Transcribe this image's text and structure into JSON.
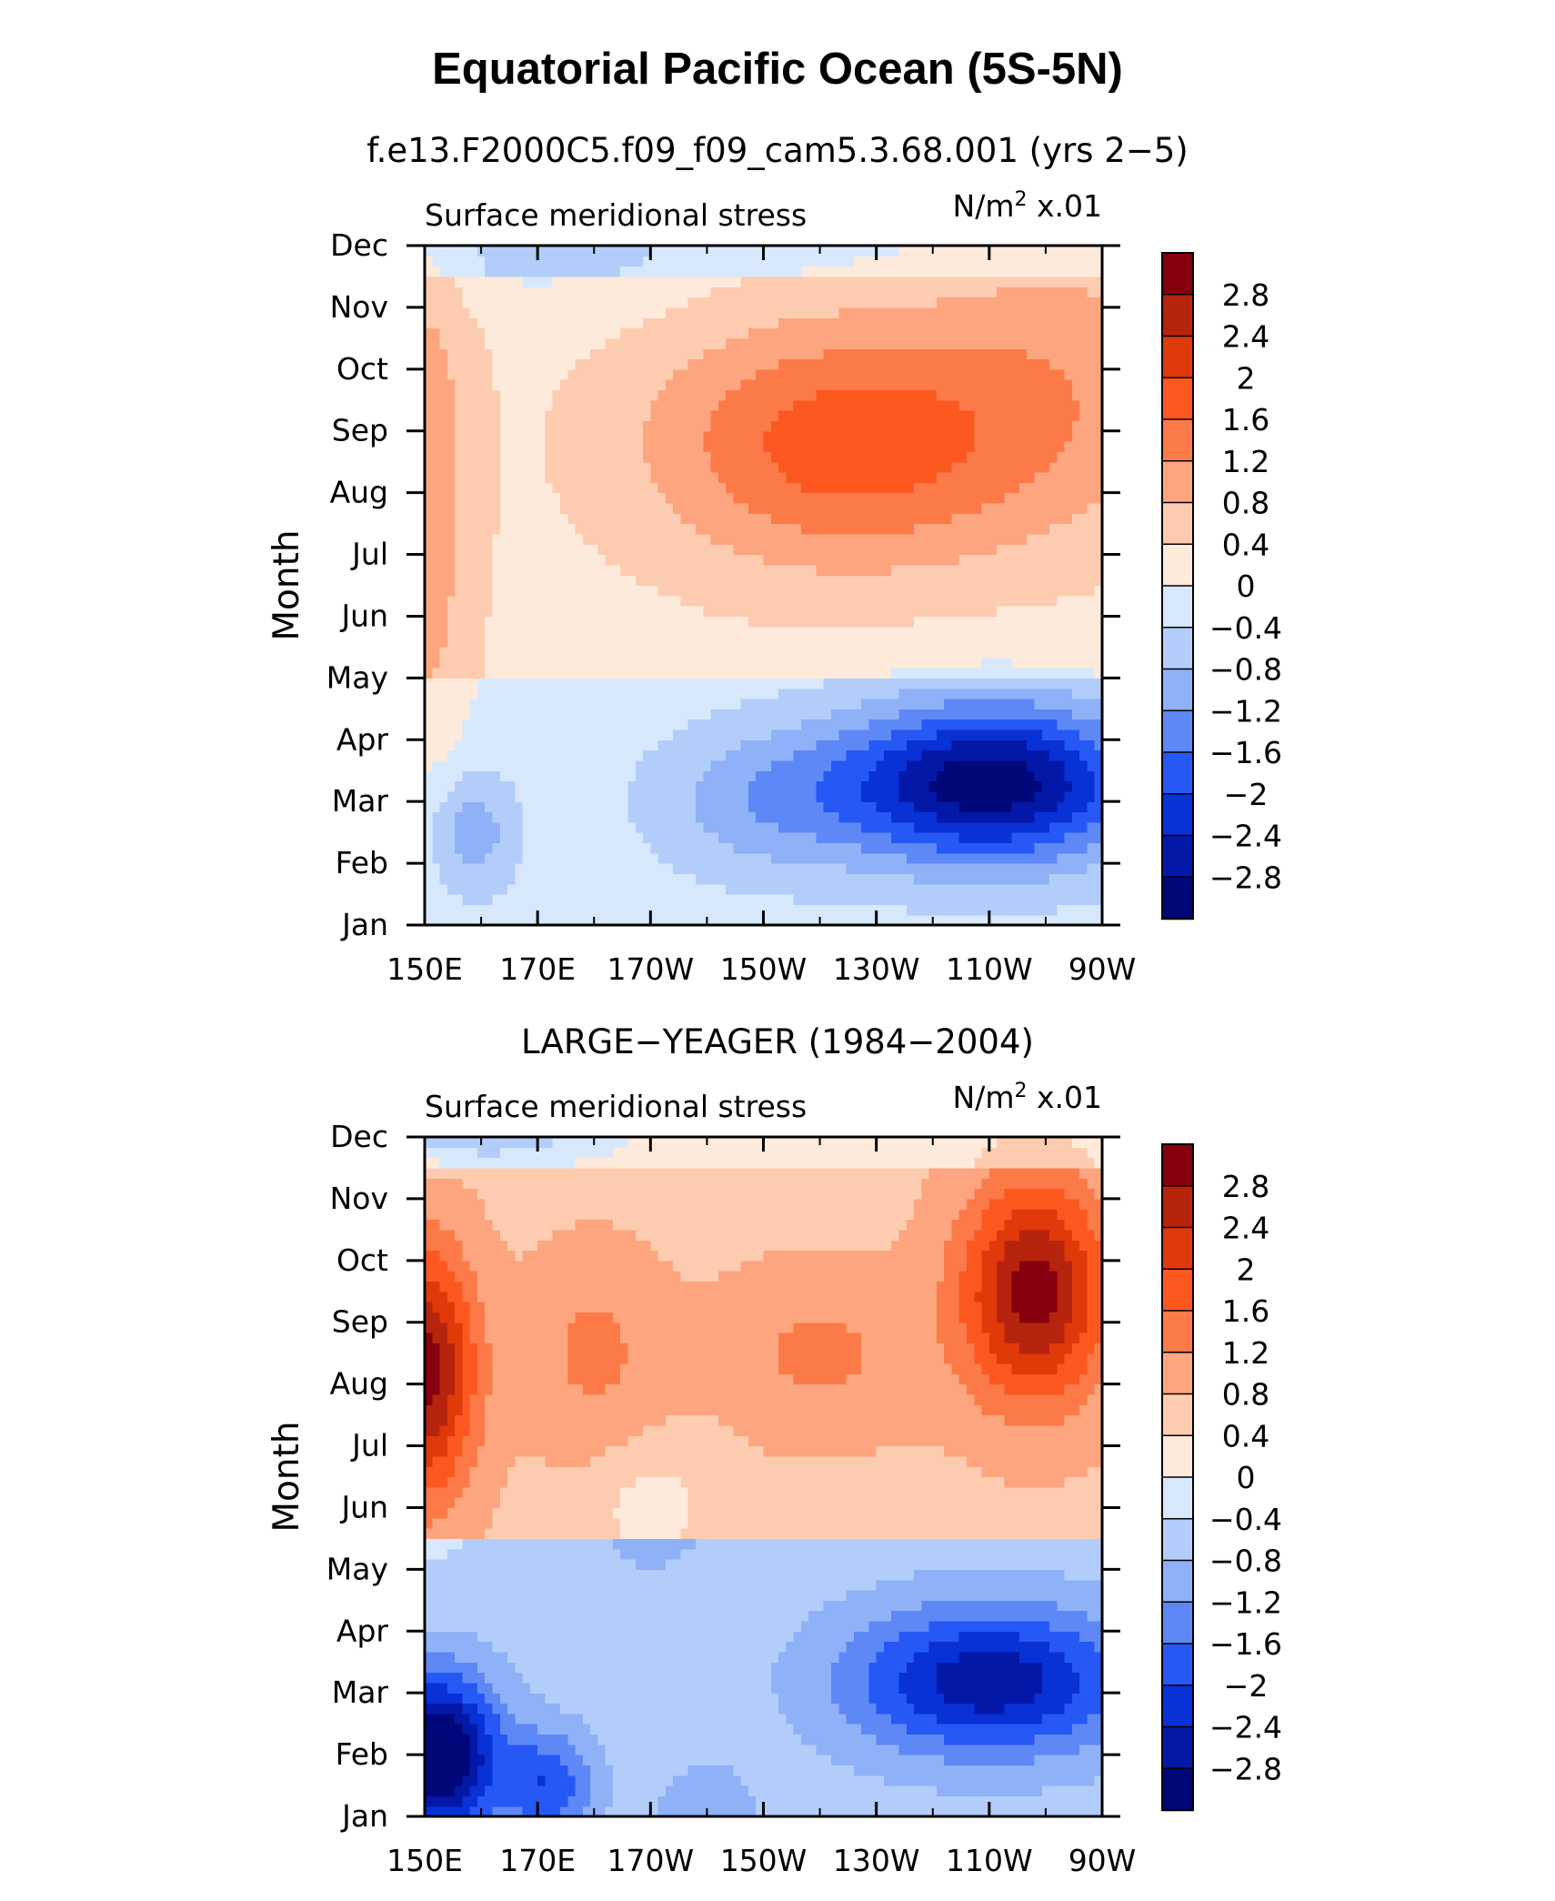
{
  "title": "Equatorial Pacific Ocean (5S-5N)",
  "colorbar": {
    "labels": [
      "2.8",
      "2.4",
      "2",
      "1.6",
      "1.2",
      "0.8",
      "0.4",
      "0",
      "−0.4",
      "−0.8",
      "−1.2",
      "−1.6",
      "−2",
      "−2.4",
      "−2.8"
    ],
    "colors": [
      "#87000e",
      "#b7240e",
      "#e0390a",
      "#fd5720",
      "#fc7a48",
      "#fca57e",
      "#fdcbb0",
      "#feeadb",
      "#d7e8fc",
      "#b3cdfa",
      "#8eb1f8",
      "#5e88f6",
      "#2658f6",
      "#0831d6",
      "#0418a8",
      "#000778"
    ]
  },
  "chart_data": [
    {
      "type": "contour",
      "subtitle": "f.e13.F2000C5.f09_f09_cam5.3.68.001 (yrs 2−5)",
      "left_label": "Surface meridional stress",
      "right_label": "N/m",
      "right_sup": "2",
      "right_suffix": " x.01",
      "ylabel": "Month",
      "xticks": [
        "150E",
        "170E",
        "170W",
        "150W",
        "130W",
        "110W",
        "90W"
      ],
      "yticks": [
        "Jan",
        "Feb",
        "Mar",
        "Apr",
        "May",
        "Jun",
        "Jul",
        "Aug",
        "Sep",
        "Oct",
        "Nov",
        "Dec"
      ],
      "xlim": [
        150,
        270
      ],
      "levels": [
        -2.8,
        -2.4,
        -2,
        -1.6,
        -1.2,
        -0.8,
        -0.4,
        0,
        0.4,
        0.8,
        1.2,
        1.6,
        2,
        2.4,
        2.8
      ],
      "blobs": [
        {
          "x": 150,
          "m": 7,
          "sx": 9,
          "sy": 5,
          "a": 0.8
        },
        {
          "x": 158,
          "m": 1.5,
          "sx": 8,
          "sy": 1.0,
          "a": -0.9
        },
        {
          "x": 225,
          "m": 7.8,
          "sx": 35,
          "sy": 2.0,
          "a": 1.6
        },
        {
          "x": 265,
          "m": 9,
          "sx": 25,
          "sy": 2.5,
          "a": 0.6
        },
        {
          "x": 250,
          "m": 2.3,
          "sx": 27,
          "sy": 1.3,
          "a": -2.9
        },
        {
          "x": 210,
          "m": 2,
          "sx": 20,
          "sy": 1.2,
          "a": -0.8
        },
        {
          "x": 170,
          "m": 11,
          "sx": 30,
          "sy": 1.0,
          "a": -0.4
        }
      ],
      "base": [
        {
          "x0": 150,
          "x1": 270,
          "m0": 0,
          "m1": 11,
          "v": -0.2
        },
        {
          "x0": 150,
          "x1": 270,
          "m0": 4,
          "m1": 10.5,
          "v": 0.45
        }
      ]
    },
    {
      "type": "contour",
      "subtitle": "LARGE−YEAGER (1984−2004)",
      "left_label": "Surface meridional stress",
      "right_label": "N/m",
      "right_sup": "2",
      "right_suffix": " x.01",
      "ylabel": "Month",
      "xticks": [
        "150E",
        "170E",
        "170W",
        "150W",
        "130W",
        "110W",
        "90W"
      ],
      "yticks": [
        "Jan",
        "Feb",
        "Mar",
        "Apr",
        "May",
        "Jun",
        "Jul",
        "Aug",
        "Sep",
        "Oct",
        "Nov",
        "Dec"
      ],
      "xlim": [
        150,
        270
      ],
      "levels": [
        -2.8,
        -2.4,
        -2,
        -1.6,
        -1.2,
        -0.8,
        -0.4,
        0,
        0.4,
        0.8,
        1.2,
        1.6,
        2,
        2.4,
        2.8
      ],
      "blobs": [
        {
          "x": 150,
          "m": 7.2,
          "sx": 9,
          "sy": 2.0,
          "a": 2.3
        },
        {
          "x": 180,
          "m": 7.5,
          "sx": 12,
          "sy": 1.6,
          "a": 0.6
        },
        {
          "x": 220,
          "m": 7.5,
          "sx": 18,
          "sy": 1.3,
          "a": 0.6
        },
        {
          "x": 258,
          "m": 8.5,
          "sx": 13,
          "sy": 1.8,
          "a": 2.3
        },
        {
          "x": 152,
          "m": 1,
          "sx": 11,
          "sy": 1.3,
          "a": -2.9
        },
        {
          "x": 172,
          "m": 0.5,
          "sx": 8,
          "sy": 0.9,
          "a": -1.3
        },
        {
          "x": 250,
          "m": 2.2,
          "sx": 25,
          "sy": 1.2,
          "a": -2.1
        },
        {
          "x": 160,
          "m": 11.2,
          "sx": 18,
          "sy": 0.5,
          "a": -1.2
        },
        {
          "x": 200,
          "m": 0,
          "sx": 10,
          "sy": 1,
          "a": -0.4
        },
        {
          "x": 190,
          "m": 5,
          "sx": 10,
          "sy": 1.0,
          "a": -0.5
        }
      ],
      "base": [
        {
          "x0": 150,
          "x1": 270,
          "m0": 0,
          "m1": 4.5,
          "v": -0.6
        },
        {
          "x0": 150,
          "x1": 270,
          "m0": 4.5,
          "m1": 10.5,
          "v": 0.7
        },
        {
          "x0": 150,
          "x1": 270,
          "m0": 10.5,
          "m1": 11,
          "v": 0.1
        }
      ]
    }
  ]
}
